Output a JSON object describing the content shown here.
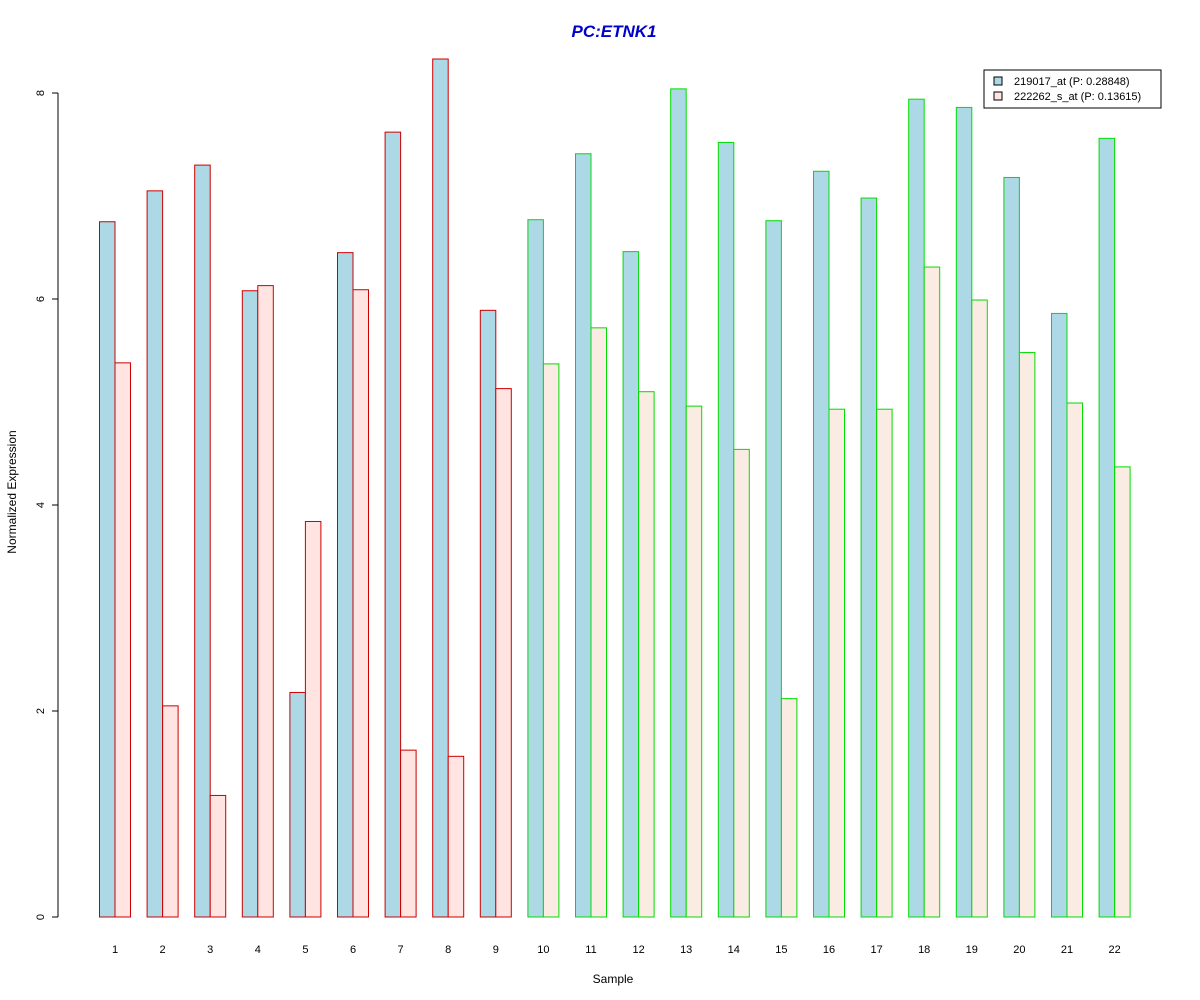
{
  "chart_data": {
    "type": "bar",
    "title": "PC:ETNK1",
    "title_color": "#0000CC",
    "xlabel": "Sample",
    "ylabel": "Normalized Expression",
    "ylim": [
      0,
      8.3
    ],
    "yticks": [
      0,
      2,
      4,
      6,
      8
    ],
    "categories": [
      "1",
      "2",
      "3",
      "4",
      "5",
      "6",
      "7",
      "8",
      "9",
      "10",
      "11",
      "12",
      "13",
      "14",
      "15",
      "16",
      "17",
      "18",
      "19",
      "20",
      "21",
      "22"
    ],
    "group_border_colors": [
      "#CC0000",
      "#CC0000",
      "#CC0000",
      "#CC0000",
      "#CC0000",
      "#CC0000",
      "#CC0000",
      "#CC0000",
      "#CC0000",
      "#00DD00",
      "#00DD00",
      "#00DD00",
      "#00DD00",
      "#00DD00",
      "#00DD00",
      "#00DD00",
      "#00DD00",
      "#00DD00",
      "#00DD00",
      "#00DD00",
      "#00DD00",
      "#00DD00"
    ],
    "series": [
      {
        "name": "219017_at (P: 0.28848)",
        "fill": "#ADD8E6",
        "values": [
          6.75,
          7.05,
          7.3,
          6.08,
          2.18,
          6.45,
          7.62,
          8.33,
          5.89,
          6.77,
          7.41,
          6.46,
          8.04,
          7.52,
          6.76,
          7.24,
          6.98,
          7.94,
          7.86,
          7.18,
          5.86,
          7.56
        ]
      },
      {
        "name": "222262_s_at (P: 0.13615)",
        "fill_by_group": [
          "#FFE4E1",
          "#FFE4E1",
          "#FFE4E1",
          "#FFE4E1",
          "#FFE4E1",
          "#FFE4E1",
          "#FFE4E1",
          "#FFE4E1",
          "#FFE4E1",
          "#FAEBE3",
          "#FAEBE3",
          "#FAEBE3",
          "#FAEBE3",
          "#FAEBE3",
          "#FAEBE3",
          "#FAEBE3",
          "#FAEBE3",
          "#FAEBE3",
          "#FAEBE3",
          "#FAEBE3",
          "#FAEBE3",
          "#FAEBE3"
        ],
        "legend_fill": "#FFE4E1",
        "values": [
          5.38,
          2.05,
          1.18,
          6.13,
          3.84,
          6.09,
          1.62,
          1.56,
          5.13,
          5.37,
          5.72,
          5.1,
          4.96,
          4.54,
          2.12,
          4.93,
          4.93,
          6.31,
          5.99,
          5.48,
          4.99,
          4.37
        ]
      }
    ],
    "legend_position": "top-right",
    "grid": false
  }
}
